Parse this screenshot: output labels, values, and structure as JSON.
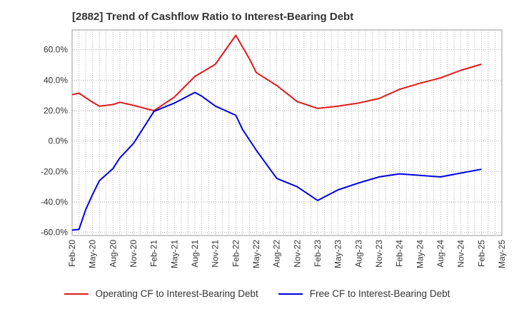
{
  "title": "[2882]  Trend of Cashflow Ratio to Interest-Bearing Debt",
  "chart_data": {
    "type": "line",
    "title": "[2882]  Trend of Cashflow Ratio to Interest-Bearing Debt",
    "xlabel": "",
    "ylabel": "",
    "x_ticks": [
      "Feb-20",
      "May-20",
      "Aug-20",
      "Nov-20",
      "Feb-21",
      "May-21",
      "Aug-21",
      "Nov-21",
      "Feb-22",
      "May-22",
      "Aug-22",
      "Nov-22",
      "Feb-23",
      "May-23",
      "Aug-23",
      "Nov-23",
      "Feb-24",
      "May-24",
      "Aug-24",
      "Nov-24",
      "Feb-25",
      "May-25"
    ],
    "y_ticks": [
      "60.0%",
      "40.0%",
      "20.0%",
      "0.0%",
      "-20.0%",
      "-40.0%",
      "-60.0%"
    ],
    "y_tick_values": [
      60,
      40,
      20,
      0,
      -20,
      -40,
      -60
    ],
    "ylim": [
      -62,
      73
    ],
    "grid": true,
    "legend_position": "bottom",
    "series": [
      {
        "name": "Operating CF to Interest-Bearing Debt",
        "color": "#e31a1c",
        "points": [
          [
            "2020-02",
            30.5
          ],
          [
            "2020-03",
            31.5
          ],
          [
            "2020-04",
            28.5
          ],
          [
            "2020-05",
            25.5
          ],
          [
            "2020-06",
            23.0
          ],
          [
            "2020-08",
            24.0
          ],
          [
            "2020-09",
            25.5
          ],
          [
            "2020-11",
            23.5
          ],
          [
            "2021-02",
            20.0
          ],
          [
            "2021-05",
            29.0
          ],
          [
            "2021-08",
            42.5
          ],
          [
            "2021-11",
            50.5
          ],
          [
            "2022-02",
            69.5
          ],
          [
            "2022-04",
            54.0
          ],
          [
            "2022-05",
            45.0
          ],
          [
            "2022-08",
            36.5
          ],
          [
            "2022-11",
            26.0
          ],
          [
            "2023-02",
            21.5
          ],
          [
            "2023-05",
            23.0
          ],
          [
            "2023-08",
            25.0
          ],
          [
            "2023-11",
            28.0
          ],
          [
            "2024-02",
            34.0
          ],
          [
            "2024-05",
            38.0
          ],
          [
            "2024-08",
            41.5
          ],
          [
            "2024-11",
            46.5
          ],
          [
            "2025-02",
            50.5
          ]
        ]
      },
      {
        "name": "Free CF to Interest-Bearing Debt",
        "color": "#0000e6",
        "points": [
          [
            "2020-02",
            -58.5
          ],
          [
            "2020-03",
            -58.0
          ],
          [
            "2020-04",
            -45.0
          ],
          [
            "2020-05",
            -35.0
          ],
          [
            "2020-06",
            -26.0
          ],
          [
            "2020-08",
            -18.0
          ],
          [
            "2020-09",
            -11.0
          ],
          [
            "2020-11",
            -1.5
          ],
          [
            "2021-02",
            19.5
          ],
          [
            "2021-05",
            25.0
          ],
          [
            "2021-08",
            32.0
          ],
          [
            "2021-09",
            29.5
          ],
          [
            "2021-11",
            23.0
          ],
          [
            "2022-02",
            17.0
          ],
          [
            "2022-03",
            7.5
          ],
          [
            "2022-05",
            -6.0
          ],
          [
            "2022-08",
            -24.5
          ],
          [
            "2022-11",
            -30.0
          ],
          [
            "2023-02",
            -39.0
          ],
          [
            "2023-05",
            -32.0
          ],
          [
            "2023-08",
            -27.5
          ],
          [
            "2023-11",
            -23.5
          ],
          [
            "2024-02",
            -21.5
          ],
          [
            "2024-05",
            -22.5
          ],
          [
            "2024-08",
            -23.5
          ],
          [
            "2024-11",
            -21.0
          ],
          [
            "2025-02",
            -18.5
          ]
        ]
      }
    ]
  }
}
